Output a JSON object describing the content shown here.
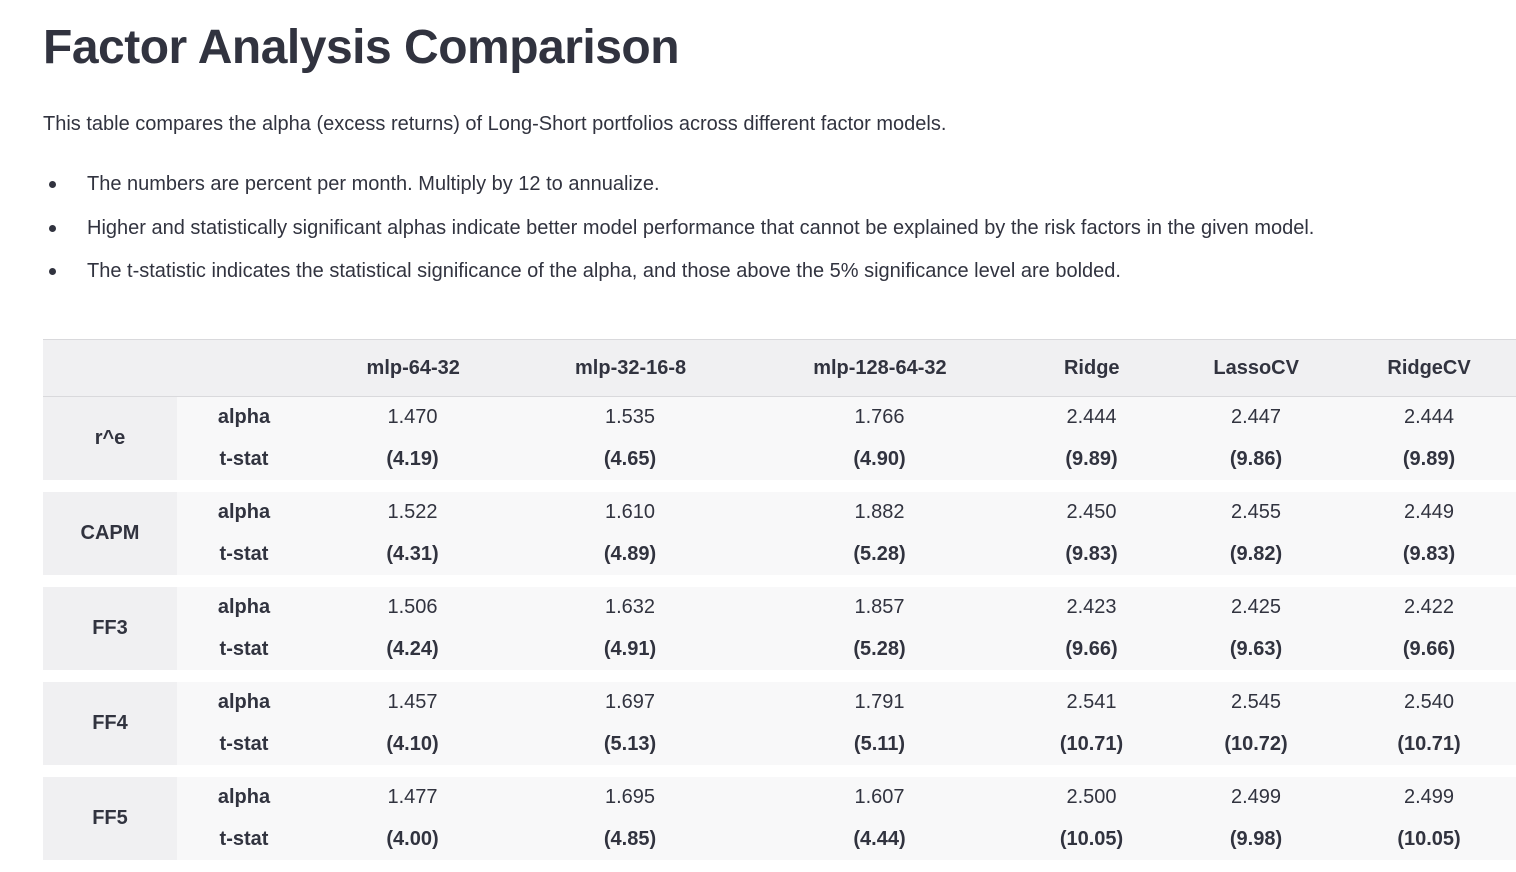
{
  "title": "Factor Analysis Comparison",
  "intro": "This table compares the alpha (excess returns) of Long-Short portfolios across different factor models.",
  "notes": [
    "The numbers are percent per month. Multiply by 12 to annualize.",
    "Higher and statistically significant alphas indicate better model performance that cannot be explained by the risk factors in the given model.",
    "The t-statistic indicates the statistical significance of the alpha, and those above the 5% significance level are bolded."
  ],
  "columns": [
    "mlp-64-32",
    "mlp-32-16-8",
    "mlp-128-64-32",
    "Ridge",
    "LassoCV",
    "RidgeCV"
  ],
  "row_labels": {
    "alpha": "alpha",
    "tstat": "t-stat"
  },
  "groups": [
    {
      "name": "r^e",
      "alpha": [
        "1.470",
        "1.535",
        "1.766",
        "2.444",
        "2.447",
        "2.444"
      ],
      "tstat": [
        "(4.19)",
        "(4.65)",
        "(4.90)",
        "(9.89)",
        "(9.86)",
        "(9.89)"
      ]
    },
    {
      "name": "CAPM",
      "alpha": [
        "1.522",
        "1.610",
        "1.882",
        "2.450",
        "2.455",
        "2.449"
      ],
      "tstat": [
        "(4.31)",
        "(4.89)",
        "(5.28)",
        "(9.83)",
        "(9.82)",
        "(9.83)"
      ]
    },
    {
      "name": "FF3",
      "alpha": [
        "1.506",
        "1.632",
        "1.857",
        "2.423",
        "2.425",
        "2.422"
      ],
      "tstat": [
        "(4.24)",
        "(4.91)",
        "(5.28)",
        "(9.66)",
        "(9.63)",
        "(9.66)"
      ]
    },
    {
      "name": "FF4",
      "alpha": [
        "1.457",
        "1.697",
        "1.791",
        "2.541",
        "2.545",
        "2.540"
      ],
      "tstat": [
        "(4.10)",
        "(5.13)",
        "(5.11)",
        "(10.71)",
        "(10.72)",
        "(10.71)"
      ]
    },
    {
      "name": "FF5",
      "alpha": [
        "1.477",
        "1.695",
        "1.607",
        "2.500",
        "2.499",
        "2.499"
      ],
      "tstat": [
        "(4.00)",
        "(4.85)",
        "(4.44)",
        "(10.05)",
        "(9.98)",
        "(10.05)"
      ]
    }
  ]
}
